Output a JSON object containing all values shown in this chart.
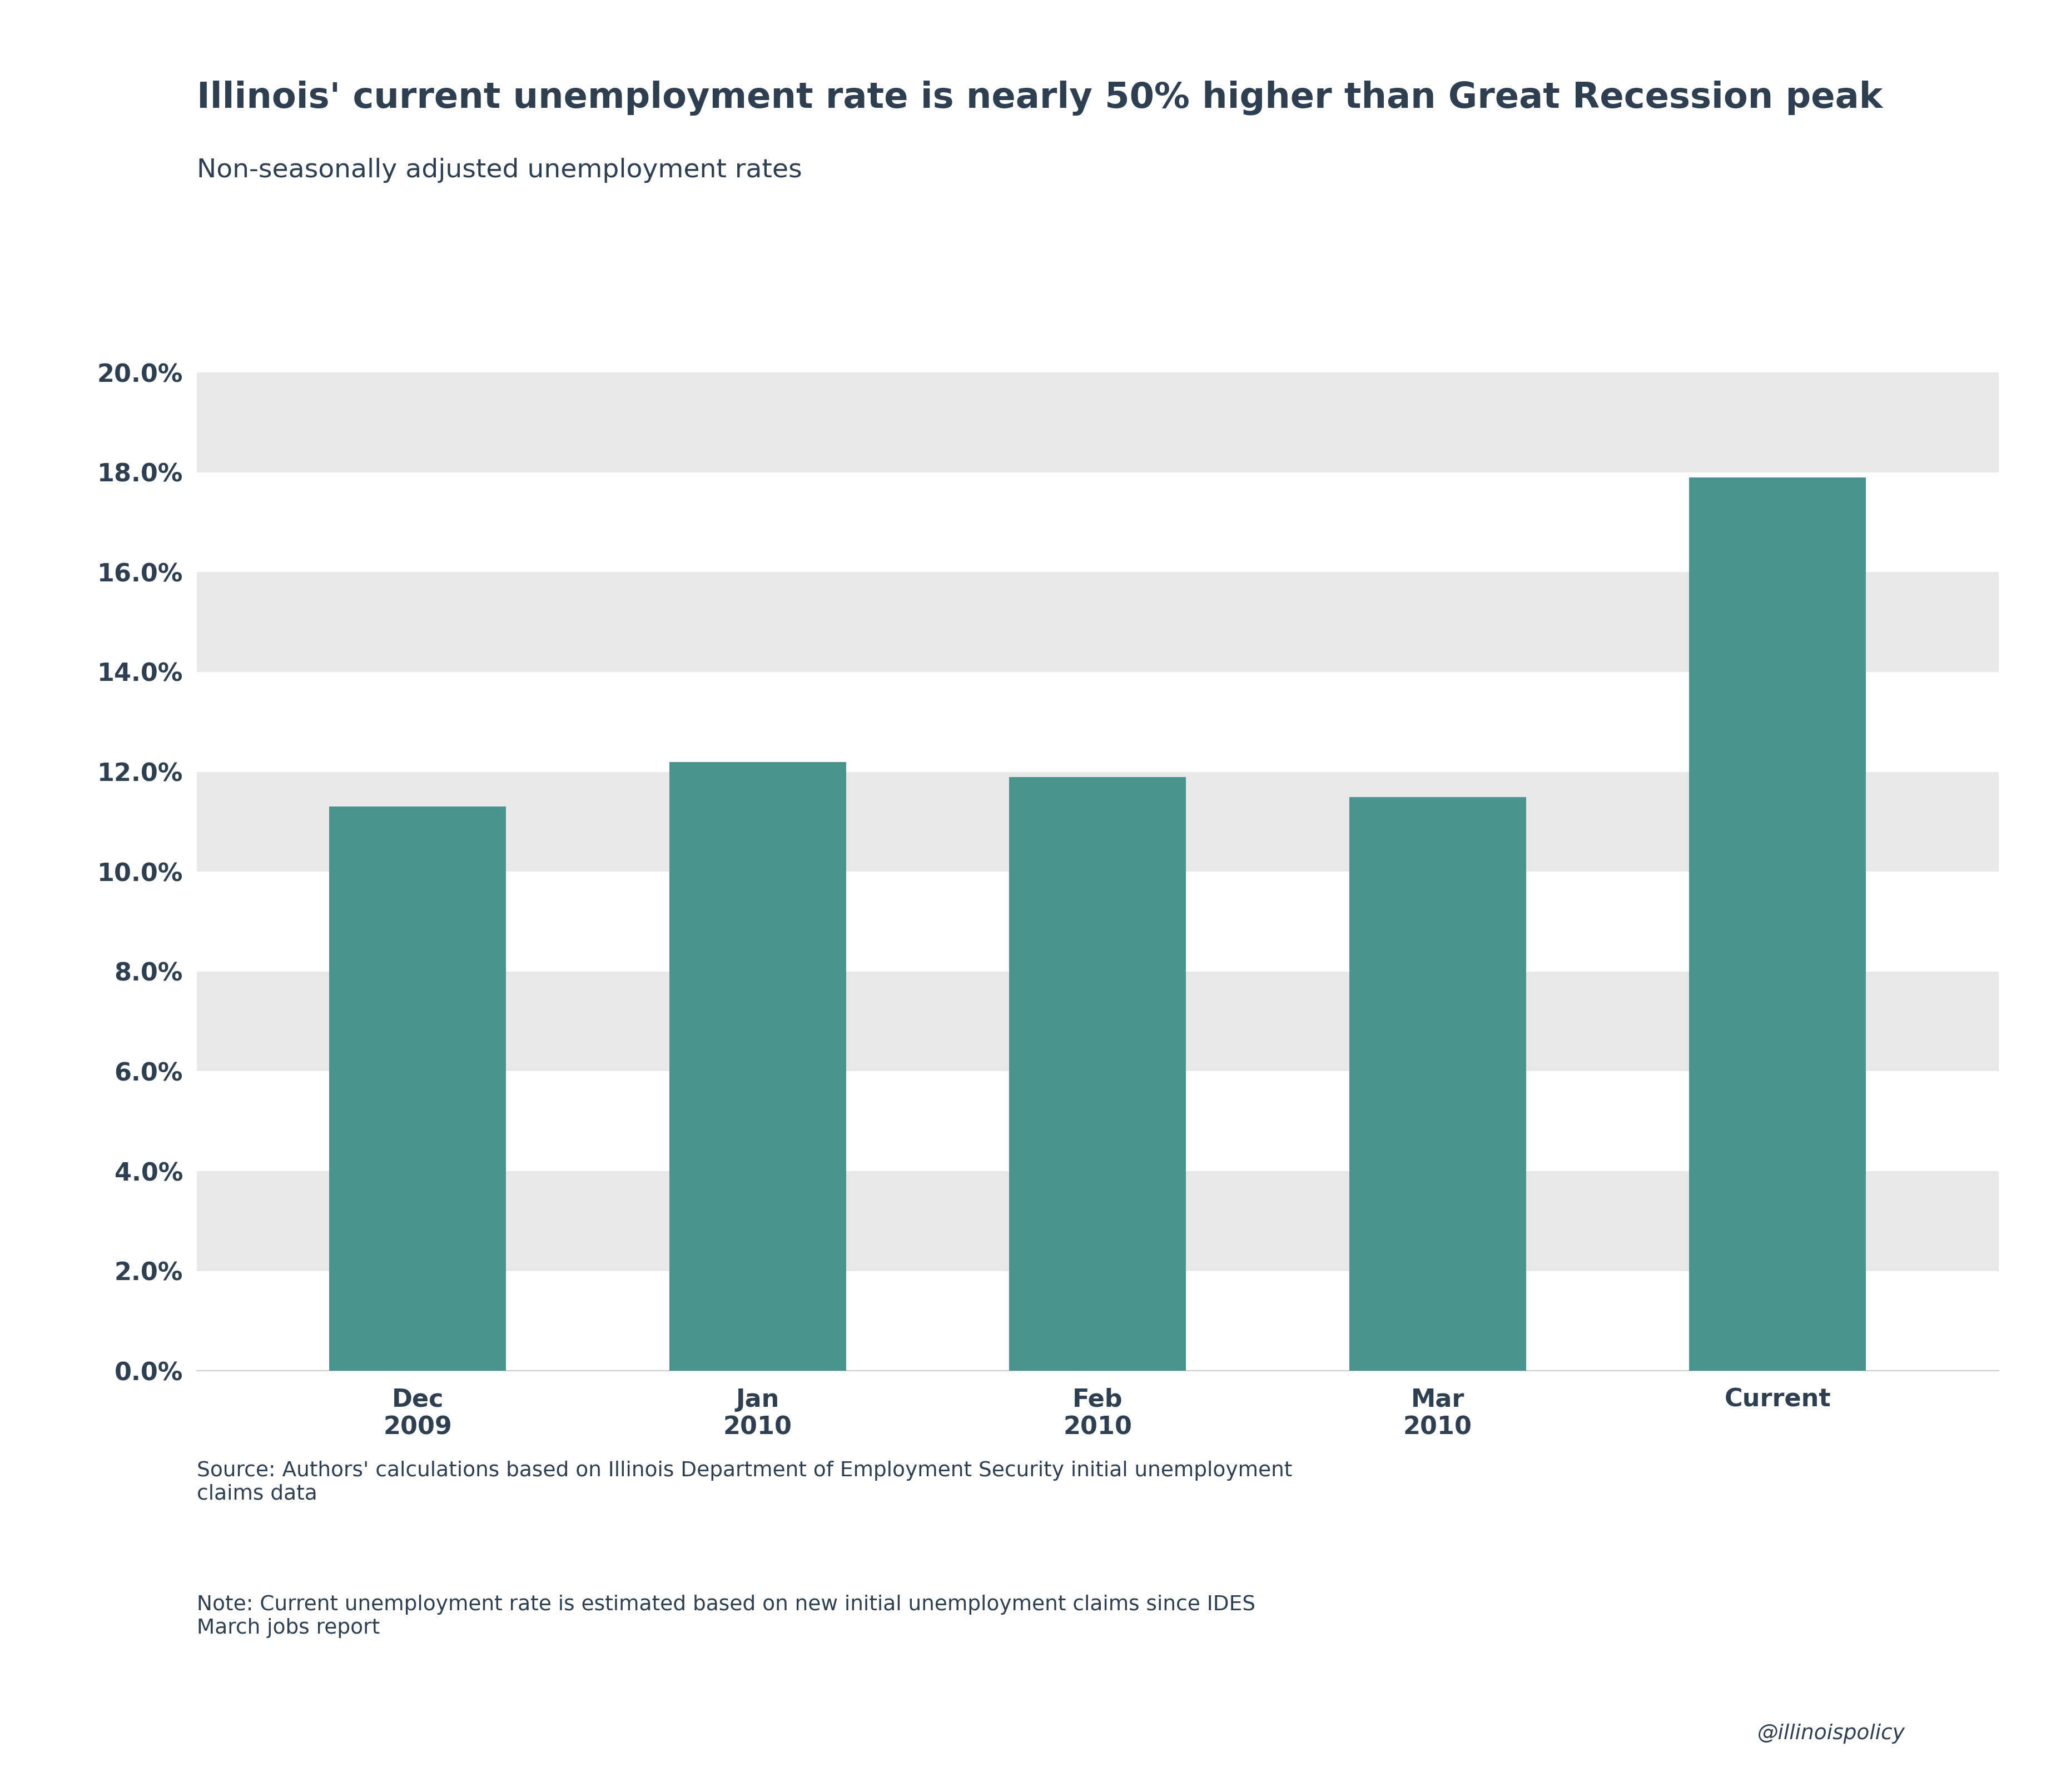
{
  "title": "Illinois' current unemployment rate is nearly 50% higher than Great Recession peak",
  "subtitle": "Non-seasonally adjusted unemployment rates",
  "categories": [
    "Dec\n2009",
    "Jan\n2010",
    "Feb\n2010",
    "Mar\n2010",
    "Current"
  ],
  "values": [
    0.113,
    0.122,
    0.119,
    0.115,
    0.179
  ],
  "bar_color": "#4a9490",
  "title_color": "#2d3f50",
  "subtitle_color": "#2d3f50",
  "tick_label_color": "#2d3f50",
  "footer_color": "#2d3f50",
  "background_color": "#ffffff",
  "stripe_color": "#e8e8e8",
  "ylim": [
    0,
    0.21
  ],
  "yticks": [
    0.0,
    0.02,
    0.04,
    0.06,
    0.08,
    0.1,
    0.12,
    0.14,
    0.16,
    0.18,
    0.2
  ],
  "title_fontsize": 46,
  "subtitle_fontsize": 34,
  "tick_fontsize": 32,
  "footer_fontsize": 27,
  "source_text": "Source: Authors' calculations based on Illinois Department of Employment Security initial unemployment\nclaims data",
  "note_text": "Note: Current unemployment rate is estimated based on new initial unemployment claims since IDES\nMarch jobs report",
  "watermark_text": "@illinoispolicy"
}
